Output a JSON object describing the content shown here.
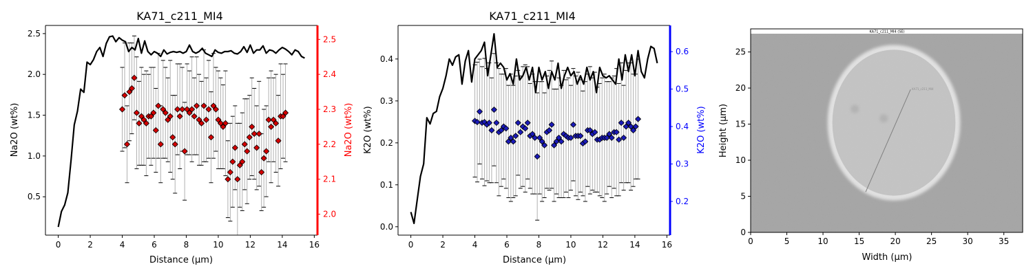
{
  "colors": {
    "profile": "#000000",
    "na_axis": "#ff0000",
    "na_marker": "#d40000",
    "k_axis": "#0000ff",
    "k_marker": "#1a1ab8",
    "errorbar": "#b0b0b0",
    "sem_bg": "#a4a4a4",
    "sem_rim": "#e6e6e6",
    "sem_interior": "#c3c3c3"
  },
  "chart_data": [
    {
      "type": "line",
      "title": "KA71_c211_MI4",
      "xlabel": "Distance (µm)",
      "ylabel": "Na2O (wt%)",
      "y2label": "Na2O (wt%)",
      "xlim": [
        -0.8,
        16.2
      ],
      "ylim": [
        0.03,
        2.6
      ],
      "y2lim": [
        1.94,
        2.54
      ],
      "xticks": [
        "0",
        "2",
        "4",
        "6",
        "8",
        "10",
        "12",
        "14",
        "16"
      ],
      "yticks": [
        "0.5",
        "1.0",
        "1.5",
        "2.0",
        "2.5"
      ],
      "y2ticks": [
        "2.0",
        "2.1",
        "2.2",
        "2.3",
        "2.4",
        "2.5"
      ],
      "profile": {
        "x": [
          0.0,
          0.2,
          0.4,
          0.6,
          0.8,
          1.0,
          1.2,
          1.4,
          1.6,
          1.8,
          2.0,
          2.2,
          2.4,
          2.6,
          2.8,
          3.0,
          3.2,
          3.4,
          3.6,
          3.8,
          4.0,
          4.2,
          4.4,
          4.6,
          4.8,
          5.0,
          5.2,
          5.4,
          5.6,
          5.8,
          6.0,
          6.2,
          6.4,
          6.6,
          6.8,
          7.0,
          7.2,
          7.4,
          7.6,
          7.8,
          8.0,
          8.2,
          8.4,
          8.6,
          8.8,
          9.0,
          9.2,
          9.4,
          9.6,
          9.8,
          10.0,
          10.2,
          10.4,
          10.6,
          10.8,
          11.0,
          11.2,
          11.4,
          11.6,
          11.8,
          12.0,
          12.2,
          12.4,
          12.6,
          12.8,
          13.0,
          13.2,
          13.4,
          13.6,
          13.8,
          14.0,
          14.2,
          14.4,
          14.6,
          14.8,
          15.0,
          15.2,
          15.4
        ],
        "y": [
          0.13,
          0.32,
          0.4,
          0.55,
          0.95,
          1.38,
          1.55,
          1.82,
          1.78,
          2.15,
          2.12,
          2.18,
          2.28,
          2.33,
          2.22,
          2.38,
          2.46,
          2.47,
          2.4,
          2.45,
          2.42,
          2.4,
          2.28,
          2.33,
          2.3,
          2.44,
          2.26,
          2.41,
          2.28,
          2.24,
          2.28,
          2.26,
          2.22,
          2.3,
          2.25,
          2.27,
          2.28,
          2.27,
          2.28,
          2.26,
          2.28,
          2.36,
          2.28,
          2.26,
          2.28,
          2.32,
          2.26,
          2.24,
          2.22,
          2.3,
          2.27,
          2.26,
          2.28,
          2.28,
          2.29,
          2.26,
          2.25,
          2.28,
          2.34,
          2.27,
          2.36,
          2.26,
          2.3,
          2.3,
          2.35,
          2.26,
          2.3,
          2.29,
          2.26,
          2.3,
          2.33,
          2.31,
          2.28,
          2.24,
          2.3,
          2.28,
          2.22,
          2.2
        ]
      },
      "points": {
        "x": [
          4.0,
          4.15,
          4.3,
          4.45,
          4.6,
          4.75,
          4.9,
          5.05,
          5.2,
          5.35,
          5.5,
          5.65,
          5.8,
          5.95,
          6.1,
          6.25,
          6.4,
          6.55,
          6.7,
          6.85,
          7.0,
          7.15,
          7.3,
          7.45,
          7.6,
          7.75,
          7.9,
          8.05,
          8.2,
          8.35,
          8.5,
          8.65,
          8.8,
          8.95,
          9.1,
          9.25,
          9.4,
          9.55,
          9.7,
          9.85,
          10.0,
          10.15,
          10.3,
          10.45,
          10.6,
          10.75,
          10.9,
          11.05,
          11.2,
          11.35,
          11.5,
          11.65,
          11.8,
          11.95,
          12.1,
          12.25,
          12.4,
          12.55,
          12.7,
          12.85,
          13.0,
          13.15,
          13.3,
          13.45,
          13.6,
          13.75,
          13.9,
          14.05,
          14.2
        ],
        "y": [
          2.3,
          2.34,
          2.2,
          2.35,
          2.36,
          2.39,
          2.29,
          2.26,
          2.28,
          2.27,
          2.26,
          2.28,
          2.28,
          2.29,
          2.24,
          2.31,
          2.2,
          2.3,
          2.29,
          2.27,
          2.28,
          2.22,
          2.2,
          2.3,
          2.28,
          2.3,
          2.18,
          2.3,
          2.29,
          2.3,
          2.28,
          2.31,
          2.27,
          2.26,
          2.31,
          2.27,
          2.3,
          2.22,
          2.31,
          2.3,
          2.27,
          2.26,
          2.25,
          2.26,
          2.1,
          2.12,
          2.15,
          2.19,
          2.1,
          2.14,
          2.15,
          2.2,
          2.18,
          2.22,
          2.25,
          2.23,
          2.19,
          2.23,
          2.12,
          2.16,
          2.18,
          2.27,
          2.25,
          2.27,
          2.26,
          2.21,
          2.28,
          2.28,
          2.29
        ],
        "err": [
          0.12,
          0.15,
          0.11,
          0.14,
          0.13,
          0.12,
          0.16,
          0.12,
          0.14,
          0.13,
          0.15,
          0.12,
          0.14,
          0.13,
          0.12,
          0.15,
          0.11,
          0.14,
          0.13,
          0.12,
          0.16,
          0.12,
          0.14,
          0.13,
          0.15,
          0.12,
          0.14,
          0.13,
          0.12,
          0.15,
          0.11,
          0.14,
          0.13,
          0.12,
          0.16,
          0.12,
          0.14,
          0.13,
          0.15,
          0.12,
          0.14,
          0.13,
          0.12,
          0.15,
          0.11,
          0.14,
          0.13,
          0.12,
          0.16,
          0.12,
          0.14,
          0.13,
          0.15,
          0.12,
          0.14,
          0.13,
          0.12,
          0.15,
          0.11,
          0.14,
          0.13,
          0.12,
          0.16,
          0.12,
          0.14,
          0.13,
          0.15,
          0.12,
          0.14
        ]
      }
    },
    {
      "type": "line",
      "title": "KA71_c211_MI4",
      "xlabel": "Distance (µm)",
      "ylabel": "K2O (wt%)",
      "y2label": "K2O (wt%)",
      "xlim": [
        -0.8,
        16.2
      ],
      "ylim": [
        -0.02,
        0.48
      ],
      "y2lim": [
        0.11,
        0.67
      ],
      "xticks": [
        "0",
        "2",
        "4",
        "6",
        "8",
        "10",
        "12",
        "14",
        "16"
      ],
      "yticks": [
        "0.0",
        "0.1",
        "0.2",
        "0.3",
        "0.4"
      ],
      "y2ticks": [
        "0.2",
        "0.3",
        "0.4",
        "0.5",
        "0.6"
      ],
      "profile": {
        "x": [
          0.0,
          0.2,
          0.4,
          0.6,
          0.8,
          1.0,
          1.2,
          1.4,
          1.6,
          1.8,
          2.0,
          2.2,
          2.4,
          2.6,
          2.8,
          3.0,
          3.2,
          3.4,
          3.6,
          3.8,
          4.0,
          4.2,
          4.4,
          4.6,
          4.8,
          5.0,
          5.2,
          5.4,
          5.6,
          5.8,
          6.0,
          6.2,
          6.4,
          6.6,
          6.8,
          7.0,
          7.2,
          7.4,
          7.6,
          7.8,
          8.0,
          8.2,
          8.4,
          8.6,
          8.8,
          9.0,
          9.2,
          9.4,
          9.6,
          9.8,
          10.0,
          10.2,
          10.4,
          10.6,
          10.8,
          11.0,
          11.2,
          11.4,
          11.6,
          11.8,
          12.0,
          12.2,
          12.4,
          12.6,
          12.8,
          13.0,
          13.2,
          13.4,
          13.6,
          13.8,
          14.0,
          14.2,
          14.4,
          14.6,
          14.8,
          15.0,
          15.2,
          15.4
        ],
        "y": [
          0.035,
          0.008,
          0.065,
          0.12,
          0.15,
          0.26,
          0.245,
          0.27,
          0.275,
          0.31,
          0.33,
          0.36,
          0.4,
          0.385,
          0.405,
          0.41,
          0.34,
          0.395,
          0.42,
          0.345,
          0.4,
          0.41,
          0.42,
          0.44,
          0.36,
          0.41,
          0.46,
          0.38,
          0.39,
          0.38,
          0.35,
          0.365,
          0.34,
          0.4,
          0.35,
          0.36,
          0.38,
          0.35,
          0.38,
          0.32,
          0.38,
          0.35,
          0.37,
          0.33,
          0.37,
          0.35,
          0.39,
          0.33,
          0.36,
          0.38,
          0.36,
          0.37,
          0.34,
          0.36,
          0.34,
          0.38,
          0.35,
          0.37,
          0.32,
          0.38,
          0.36,
          0.355,
          0.36,
          0.35,
          0.34,
          0.4,
          0.35,
          0.41,
          0.37,
          0.41,
          0.36,
          0.42,
          0.37,
          0.355,
          0.4,
          0.43,
          0.425,
          0.39
        ]
      },
      "points": {
        "x": [
          4.0,
          4.15,
          4.3,
          4.45,
          4.6,
          4.75,
          4.9,
          5.05,
          5.2,
          5.35,
          5.5,
          5.65,
          5.8,
          5.95,
          6.1,
          6.25,
          6.4,
          6.55,
          6.7,
          6.85,
          7.0,
          7.15,
          7.3,
          7.45,
          7.6,
          7.75,
          7.9,
          8.05,
          8.2,
          8.35,
          8.5,
          8.65,
          8.8,
          8.95,
          9.1,
          9.25,
          9.4,
          9.55,
          9.7,
          9.85,
          10.0,
          10.15,
          10.3,
          10.45,
          10.6,
          10.75,
          10.9,
          11.05,
          11.2,
          11.35,
          11.5,
          11.65,
          11.8,
          11.95,
          12.1,
          12.25,
          12.4,
          12.55,
          12.7,
          12.85,
          13.0,
          13.15,
          13.3,
          13.45,
          13.6,
          13.75,
          13.9,
          14.05,
          14.2
        ],
        "y": [
          0.415,
          0.412,
          0.44,
          0.41,
          0.412,
          0.405,
          0.41,
          0.39,
          0.445,
          0.41,
          0.385,
          0.39,
          0.4,
          0.395,
          0.36,
          0.37,
          0.36,
          0.375,
          0.41,
          0.385,
          0.4,
          0.395,
          0.41,
          0.375,
          0.38,
          0.37,
          0.32,
          0.37,
          0.36,
          0.35,
          0.385,
          0.39,
          0.405,
          0.35,
          0.36,
          0.37,
          0.36,
          0.38,
          0.375,
          0.37,
          0.37,
          0.405,
          0.375,
          0.375,
          0.375,
          0.355,
          0.36,
          0.39,
          0.39,
          0.38,
          0.385,
          0.365,
          0.365,
          0.37,
          0.37,
          0.37,
          0.38,
          0.37,
          0.385,
          0.385,
          0.365,
          0.41,
          0.37,
          0.4,
          0.41,
          0.4,
          0.39,
          0.4,
          0.42
        ],
        "err": [
          0.15,
          0.16,
          0.14,
          0.15,
          0.17,
          0.15,
          0.16,
          0.14,
          0.15,
          0.16,
          0.17,
          0.15,
          0.14,
          0.16,
          0.15,
          0.17,
          0.15,
          0.16,
          0.14,
          0.15,
          0.16,
          0.17,
          0.15,
          0.14,
          0.16,
          0.15,
          0.17,
          0.15,
          0.16,
          0.14,
          0.15,
          0.16,
          0.17,
          0.15,
          0.14,
          0.16,
          0.15,
          0.17,
          0.15,
          0.16,
          0.14,
          0.15,
          0.16,
          0.17,
          0.15,
          0.14,
          0.16,
          0.15,
          0.17,
          0.15,
          0.16,
          0.14,
          0.15,
          0.16,
          0.17,
          0.15,
          0.14,
          0.16,
          0.15,
          0.17,
          0.15,
          0.16,
          0.14,
          0.15,
          0.16,
          0.17,
          0.15,
          0.14,
          0.16
        ]
      }
    },
    {
      "type": "image",
      "image_title": "KA71_c211_MI4 (SE)",
      "image_label": "KA71_c211_MI4",
      "xlabel": "Width (µm)",
      "ylabel": "Height (µm)",
      "xlim": [
        0,
        37.6
      ],
      "ylim": [
        0,
        28.2
      ],
      "xticks": [
        "0",
        "5",
        "10",
        "15",
        "20",
        "25",
        "30",
        "35"
      ],
      "yticks": [
        "0",
        "5",
        "10",
        "15",
        "20",
        "25"
      ],
      "transect": {
        "start": [
          15.9,
          5.6
        ],
        "end": [
          22.1,
          19.8
        ]
      },
      "inclusion_center": [
        19.8,
        15.2
      ],
      "inclusion_radius": [
        8.7,
        10.3
      ],
      "bubbles": [
        [
          14.4,
          17.1
        ],
        [
          18.4,
          15.8
        ]
      ]
    }
  ]
}
